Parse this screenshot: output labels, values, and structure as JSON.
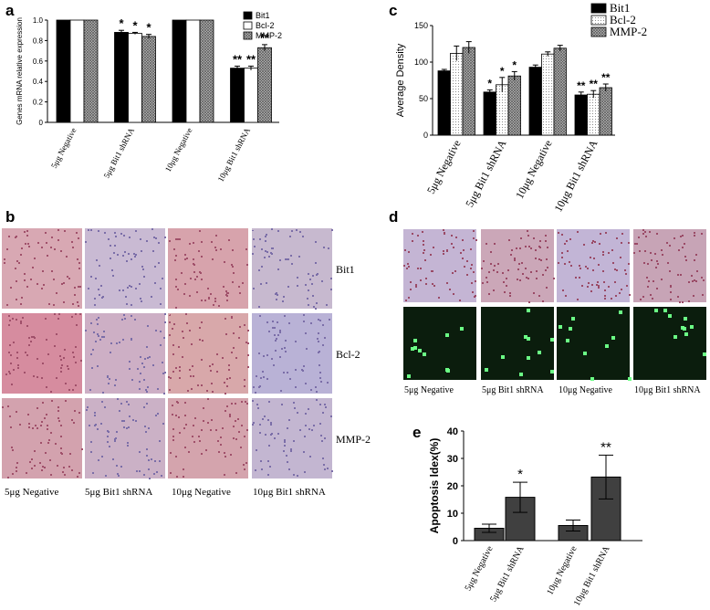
{
  "panels": {
    "a": "a",
    "b": "b",
    "c": "c",
    "d": "d",
    "e": "e"
  },
  "groups": [
    "5μg Negative",
    "5μg Bit1 shRNA",
    "10μg Negative",
    "10μg Bit1 shRNA"
  ],
  "colors": {
    "black": "#000000",
    "white": "#ffffff",
    "hatch": "#9a9a9a",
    "dark_bar": "#404040",
    "he_pink": "#d9a0a8",
    "he_purple": "#b9b0d4",
    "fluor_bg": "#0a1a0a",
    "fluor_spot": "#5dff7a"
  },
  "chart_data": [
    {
      "id": "a",
      "type": "bar",
      "categories": [
        "5μg Negative",
        "5μg Bit1 shRNA",
        "10μg Negative",
        "10μg Bit1 shRNA"
      ],
      "ylabel": "Genes mRNA relative expression",
      "ylim": [
        0,
        1.0
      ],
      "yticks": [
        "0",
        "0.2",
        "0.4",
        "0.6",
        "0.8",
        "1.0"
      ],
      "series": [
        {
          "name": "Bit1",
          "values": [
            1.0,
            0.88,
            1.0,
            0.53
          ],
          "errors": [
            0,
            0.02,
            0,
            0.02
          ],
          "marks": [
            "",
            "*",
            "",
            "**"
          ]
        },
        {
          "name": "Bcl-2",
          "values": [
            1.0,
            0.87,
            1.0,
            0.53
          ],
          "errors": [
            0,
            0.01,
            0,
            0.02
          ],
          "marks": [
            "",
            "*",
            "",
            "**"
          ]
        },
        {
          "name": "MMP-2",
          "values": [
            1.0,
            0.84,
            1.0,
            0.73
          ],
          "errors": [
            0,
            0.02,
            0,
            0.03
          ],
          "marks": [
            "",
            "*",
            "",
            "**"
          ]
        }
      ]
    },
    {
      "id": "c",
      "type": "bar",
      "categories": [
        "5μg Negative",
        "5μg Bit1 shRNA",
        "10μg Negative",
        "10μg Bit1 shRNA"
      ],
      "ylabel": "Average Density",
      "ylim": [
        0,
        150
      ],
      "yticks": [
        "0",
        "50",
        "100",
        "150"
      ],
      "series": [
        {
          "name": "Bit1",
          "values": [
            88,
            59,
            93,
            55
          ],
          "errors": [
            2,
            3,
            3,
            4
          ],
          "marks": [
            "",
            "*",
            "",
            "**"
          ]
        },
        {
          "name": "Bcl-2",
          "values": [
            112,
            69,
            111,
            56
          ],
          "errors": [
            10,
            10,
            3,
            5
          ],
          "marks": [
            "",
            "*",
            "",
            "**"
          ]
        },
        {
          "name": "MMP-2",
          "values": [
            120,
            81,
            119,
            65
          ],
          "errors": [
            8,
            6,
            4,
            5
          ],
          "marks": [
            "",
            "*",
            "",
            "**"
          ]
        }
      ]
    },
    {
      "id": "e",
      "type": "bar",
      "categories": [
        "5μg Negative",
        "5μg Bit1 shRNA",
        "10μg Negative",
        "10μg Bit1 shRNA"
      ],
      "ylabel": "Apoptosis ldex(%)",
      "ylim": [
        0,
        40
      ],
      "yticks": [
        "0",
        "10",
        "20",
        "30",
        "40"
      ],
      "values": [
        4.5,
        15.8,
        5.5,
        23.2
      ],
      "errors": [
        1.5,
        5.5,
        2.0,
        8.0
      ],
      "marks": [
        "",
        "*",
        "",
        "**"
      ]
    }
  ],
  "panel_b": {
    "rows": [
      "Bit1",
      "Bcl-2",
      "MMP-2"
    ],
    "cols": [
      "5μg Negative",
      "5μg Bit1 shRNA",
      "10μg Negative",
      "10μg Bit1 shRNA"
    ]
  },
  "panel_d": {
    "cols": [
      "5μg Negative",
      "5μg Bit1 shRNA",
      "10μg Negative",
      "10μg Bit1 shRNA"
    ]
  }
}
